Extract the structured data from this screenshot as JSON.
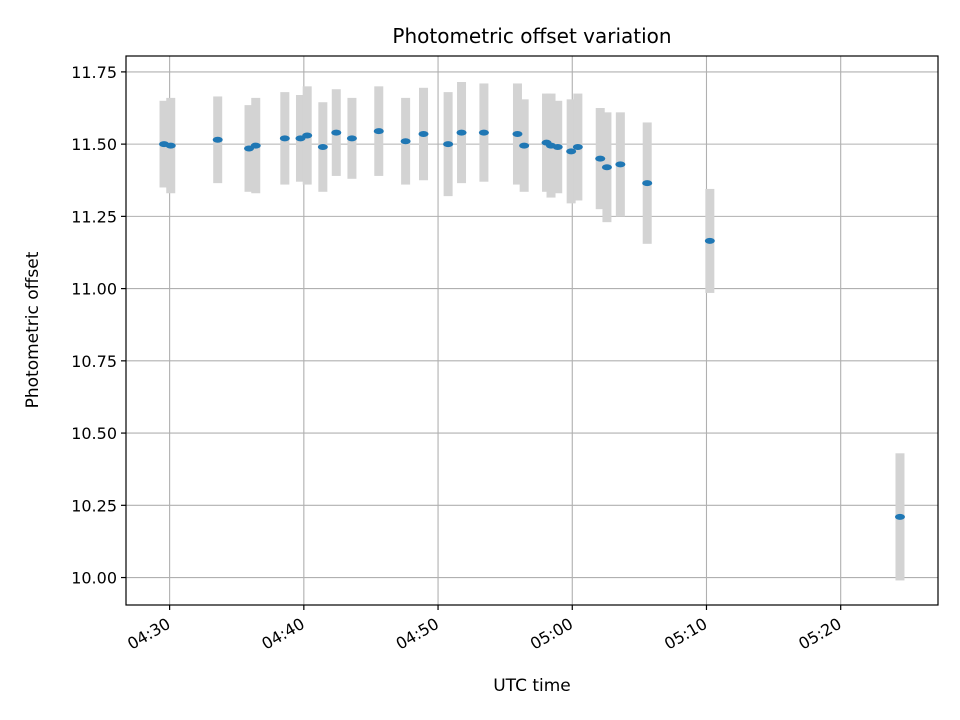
{
  "chart_data": {
    "type": "scatter",
    "title": "Photometric offset variation",
    "xlabel": "UTC time",
    "ylabel": "Photometric offset",
    "x_ticks": [
      "04:30",
      "04:40",
      "04:50",
      "05:00",
      "05:10",
      "05:20"
    ],
    "y_ticks": [
      "10.00",
      "10.25",
      "10.50",
      "10.75",
      "11.00",
      "11.25",
      "11.50",
      "11.75"
    ],
    "xlim": [
      "04:26:45",
      "05:27:15"
    ],
    "ylim": [
      9.905,
      11.805
    ],
    "grid": true,
    "colors": {
      "point": "#1f77b4",
      "errorbar": "#d3d3d3",
      "grid": "#b0b0b0"
    },
    "points": [
      {
        "t": "04:29:35",
        "y": 11.5,
        "err": 0.15
      },
      {
        "t": "04:30:05",
        "y": 11.495,
        "err": 0.165
      },
      {
        "t": "04:33:35",
        "y": 11.515,
        "err": 0.15
      },
      {
        "t": "04:35:55",
        "y": 11.485,
        "err": 0.15
      },
      {
        "t": "04:36:25",
        "y": 11.495,
        "err": 0.165
      },
      {
        "t": "04:38:35",
        "y": 11.52,
        "err": 0.16
      },
      {
        "t": "04:39:45",
        "y": 11.52,
        "err": 0.15
      },
      {
        "t": "04:40:15",
        "y": 11.53,
        "err": 0.17
      },
      {
        "t": "04:41:25",
        "y": 11.49,
        "err": 0.155
      },
      {
        "t": "04:42:25",
        "y": 11.54,
        "err": 0.15
      },
      {
        "t": "04:43:35",
        "y": 11.52,
        "err": 0.14
      },
      {
        "t": "04:45:35",
        "y": 11.545,
        "err": 0.155
      },
      {
        "t": "04:47:35",
        "y": 11.51,
        "err": 0.15
      },
      {
        "t": "04:48:55",
        "y": 11.535,
        "err": 0.16
      },
      {
        "t": "04:50:45",
        "y": 11.5,
        "err": 0.18
      },
      {
        "t": "04:51:45",
        "y": 11.54,
        "err": 0.175
      },
      {
        "t": "04:53:25",
        "y": 11.54,
        "err": 0.17
      },
      {
        "t": "04:55:55",
        "y": 11.535,
        "err": 0.175
      },
      {
        "t": "04:56:25",
        "y": 11.495,
        "err": 0.16
      },
      {
        "t": "04:58:05",
        "y": 11.505,
        "err": 0.17
      },
      {
        "t": "04:58:25",
        "y": 11.495,
        "err": 0.18
      },
      {
        "t": "04:58:55",
        "y": 11.49,
        "err": 0.16
      },
      {
        "t": "04:59:55",
        "y": 11.475,
        "err": 0.18
      },
      {
        "t": "05:00:25",
        "y": 11.49,
        "err": 0.185
      },
      {
        "t": "05:02:05",
        "y": 11.45,
        "err": 0.175
      },
      {
        "t": "05:02:35",
        "y": 11.42,
        "err": 0.19
      },
      {
        "t": "05:03:35",
        "y": 11.43,
        "err": 0.18
      },
      {
        "t": "05:05:35",
        "y": 11.365,
        "err": 0.21
      },
      {
        "t": "05:10:15",
        "y": 11.165,
        "err": 0.18
      },
      {
        "t": "05:24:25",
        "y": 10.21,
        "err": 0.22
      }
    ]
  }
}
